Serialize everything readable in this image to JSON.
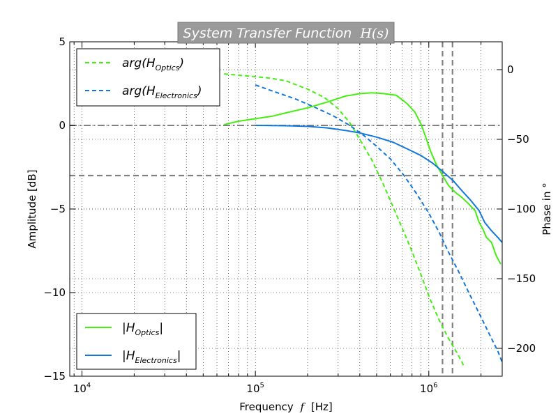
{
  "chart_data": {
    "type": "line",
    "title": {
      "text": "System Transfer Function",
      "math": "H(s)",
      "background": "#9a9a9a",
      "color": "#ffffff"
    },
    "xlabel": {
      "text": "Frequency",
      "math": "f",
      "unit": "[Hz]"
    },
    "ylabel": "Amplitude [dB]",
    "y2label": "Phase in °",
    "x_scale": "log",
    "xlim": [
      8500,
      2650000
    ],
    "ylim": [
      -15,
      5
    ],
    "y2lim": [
      -220,
      20
    ],
    "x_ticks": [
      {
        "value": 10000,
        "base": "10",
        "exp": "4"
      },
      {
        "value": 100000,
        "base": "10",
        "exp": "5"
      },
      {
        "value": 1000000,
        "base": "10",
        "exp": "6"
      }
    ],
    "y_ticks": [
      {
        "value": 5,
        "label": "5"
      },
      {
        "value": 0,
        "label": "0"
      },
      {
        "value": -5,
        "label": "−5"
      },
      {
        "value": -10,
        "label": "−10"
      },
      {
        "value": -15,
        "label": "−15"
      }
    ],
    "y2_ticks": [
      {
        "value": 0,
        "label": "0"
      },
      {
        "value": -50,
        "label": "−50"
      },
      {
        "value": -100,
        "label": "−100"
      },
      {
        "value": -150,
        "label": "−150"
      },
      {
        "value": -200,
        "label": "−200"
      }
    ],
    "grid": true,
    "reference_lines": {
      "horizontal_dashdot": [
        0
      ],
      "horizontal_dashed": [
        -3
      ],
      "vertical_dashed": [
        1200000,
        1370000
      ],
      "color": "#808080"
    },
    "series": [
      {
        "name": "|H_Optics|",
        "label_main": "|H",
        "label_sub": "Optics",
        "label_end": "|",
        "axis": "amplitude",
        "style": "solid",
        "color": "#44ee11",
        "x": [
          66000,
          80000,
          100000,
          125000,
          150000,
          200000,
          260000,
          330000,
          400000,
          470000,
          550000,
          650000,
          750000,
          830000,
          900000,
          960000,
          1020000,
          1100000,
          1200000,
          1300000,
          1420000,
          1550000,
          1700000,
          1850000,
          1950000,
          2050000,
          2150000,
          2300000,
          2450000,
          2600000
        ],
        "y": [
          0.05,
          0.25,
          0.4,
          0.55,
          0.75,
          1.05,
          1.4,
          1.75,
          1.9,
          1.95,
          1.9,
          1.8,
          1.3,
          0.8,
          0.1,
          -0.7,
          -1.5,
          -2.3,
          -3.0,
          -3.6,
          -4.0,
          -4.3,
          -4.7,
          -5.1,
          -5.8,
          -6.2,
          -6.7,
          -7.0,
          -7.8,
          -8.3
        ]
      },
      {
        "name": "|H_Electronics|",
        "label_main": "|H",
        "label_sub": "Electronics",
        "label_end": "|",
        "axis": "amplitude",
        "style": "solid",
        "color": "#1177dd",
        "x": [
          100000,
          150000,
          200000,
          260000,
          330000,
          400000,
          500000,
          620000,
          750000,
          900000,
          1050000,
          1200000,
          1380000,
          1550000,
          1750000,
          1950000,
          2100000,
          2300000,
          2500000,
          2650000
        ],
        "y": [
          0.0,
          -0.02,
          -0.06,
          -0.15,
          -0.3,
          -0.45,
          -0.7,
          -1.0,
          -1.4,
          -1.8,
          -2.25,
          -2.75,
          -3.3,
          -3.9,
          -4.5,
          -5.1,
          -5.8,
          -6.3,
          -6.7,
          -7.0
        ]
      },
      {
        "name": "arg(H_Optics)",
        "label_main": "arg(H",
        "label_sub": "Optics",
        "label_end": ")",
        "axis": "phase",
        "style": "dashed",
        "color": "#44ee11",
        "x": [
          66000,
          80000,
          100000,
          120000,
          150000,
          200000,
          250000,
          300000,
          350000,
          400000,
          470000,
          550000,
          650000,
          780000,
          900000,
          1020000,
          1150000,
          1300000,
          1450000,
          1600000
        ],
        "y": [
          -3,
          -4,
          -5,
          -6,
          -8,
          -14,
          -20,
          -28,
          -38,
          -50,
          -65,
          -83,
          -104,
          -127,
          -147,
          -165,
          -180,
          -193,
          -203,
          -213
        ]
      },
      {
        "name": "arg(H_Electronics)",
        "label_main": "arg(H",
        "label_sub": "Electronics",
        "label_end": ")",
        "axis": "phase",
        "style": "dashed",
        "color": "#1177dd",
        "x": [
          100000,
          130000,
          170000,
          220000,
          280000,
          350000,
          420000,
          500000,
          600000,
          720000,
          850000,
          1000000,
          1150000,
          1300000,
          1500000,
          1700000,
          1900000,
          2100000,
          2300000,
          2500000,
          2650000
        ],
        "y": [
          -11,
          -16,
          -21,
          -27,
          -33,
          -40,
          -47,
          -55,
          -64,
          -76,
          -89,
          -103,
          -117,
          -131,
          -146,
          -160,
          -172,
          -183,
          -193,
          -202,
          -210
        ]
      }
    ],
    "legends": [
      {
        "position": "upper-left",
        "series": [
          "arg(H_Optics)",
          "arg(H_Electronics)"
        ]
      },
      {
        "position": "lower-left",
        "series": [
          "|H_Optics|",
          "|H_Electronics|"
        ]
      }
    ]
  }
}
